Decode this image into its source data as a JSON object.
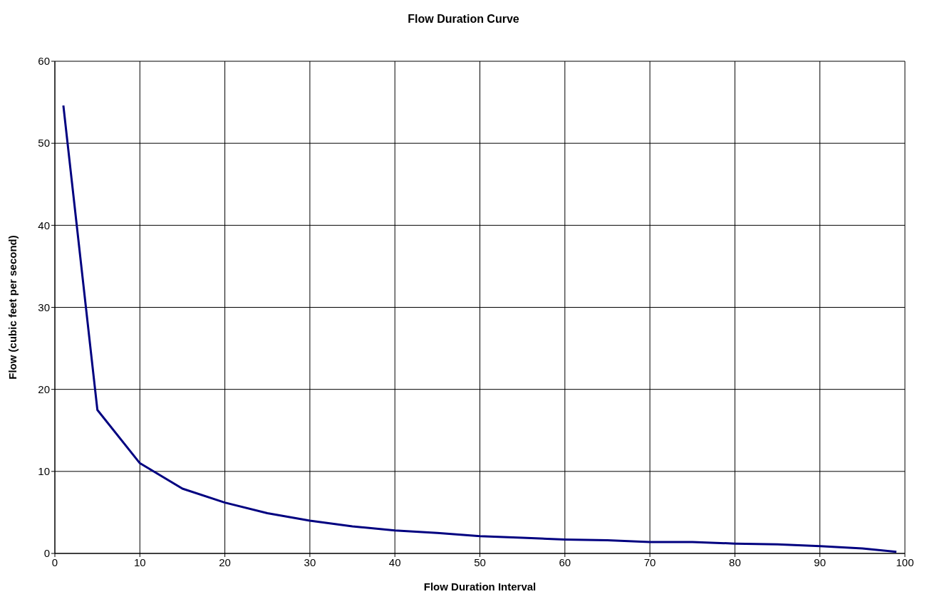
{
  "chart_data": {
    "type": "line",
    "title": "Flow Duration Curve",
    "xlabel": "Flow Duration Interval",
    "ylabel": "Flow (cubic feet per second)",
    "x": [
      1,
      5,
      10,
      15,
      20,
      25,
      30,
      35,
      40,
      45,
      50,
      55,
      60,
      65,
      70,
      75,
      80,
      85,
      90,
      95,
      99
    ],
    "series": [
      {
        "color": "#000080",
        "values": [
          54.6,
          17.5,
          11,
          7.9,
          6.2,
          4.9,
          4.0,
          3.3,
          2.8,
          2.5,
          2.1,
          1.9,
          1.7,
          1.6,
          1.4,
          1.4,
          1.2,
          1.1,
          0.9,
          0.6,
          0.2
        ]
      }
    ],
    "xlim": [
      0,
      100
    ],
    "xticks": [
      0,
      10,
      20,
      30,
      40,
      50,
      60,
      70,
      80,
      90,
      100
    ],
    "ylim": [
      0,
      60
    ],
    "yticks": [
      0,
      10,
      20,
      30,
      40,
      50,
      60
    ],
    "grid": true,
    "legend": false,
    "marker": "none",
    "line_style": "solid"
  }
}
